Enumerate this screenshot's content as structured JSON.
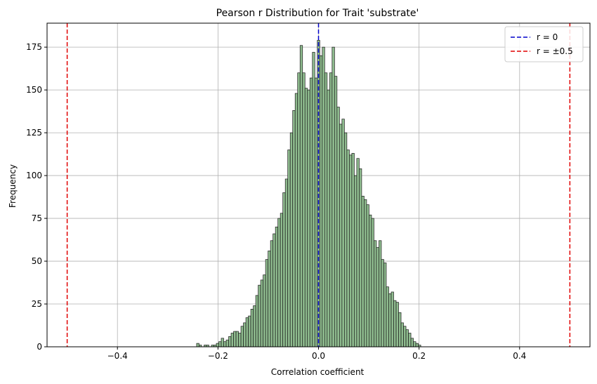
{
  "chart_data": {
    "type": "bar",
    "title": "Pearson r Distribution for Trait 'substrate'",
    "xlabel": "Correlation coefficient",
    "ylabel": "Frequency",
    "xlim": [
      -0.54,
      0.54
    ],
    "ylim": [
      0,
      189
    ],
    "xticks": [
      -0.4,
      -0.2,
      0.0,
      0.2,
      0.4
    ],
    "xtick_labels": [
      "−0.4",
      "−0.2",
      "0.0",
      "0.2",
      "0.4"
    ],
    "yticks": [
      0,
      25,
      50,
      75,
      100,
      125,
      150,
      175
    ],
    "ytick_labels": [
      "0",
      "25",
      "50",
      "75",
      "100",
      "125",
      "150",
      "175"
    ],
    "grid": true,
    "bar_color": "#8fbc8f",
    "bar_edge_color": "#1a1a1a",
    "bin_start": -0.2425,
    "bin_width": 0.0049,
    "values": [
      2,
      1,
      0,
      1,
      1,
      0,
      1,
      1,
      2,
      3,
      5,
      3,
      4,
      6,
      8,
      9,
      9,
      8,
      12,
      14,
      17,
      18,
      22,
      24,
      30,
      36,
      39,
      42,
      51,
      56,
      62,
      66,
      70,
      75,
      78,
      90,
      98,
      115,
      125,
      138,
      148,
      160,
      176,
      160,
      151,
      150,
      157,
      172,
      157,
      179,
      170,
      175,
      160,
      150,
      160,
      175,
      158,
      140,
      130,
      133,
      125,
      115,
      112,
      113,
      100,
      110,
      104,
      88,
      86,
      83,
      77,
      75,
      62,
      58,
      62,
      51,
      49,
      35,
      31,
      32,
      27,
      26,
      20,
      14,
      12,
      10,
      8,
      5,
      3,
      2,
      1
    ],
    "vlines": [
      {
        "x": 0,
        "color": "#0000cc",
        "style": "dashed"
      },
      {
        "x": -0.5,
        "color": "#e00000",
        "style": "dashed"
      },
      {
        "x": 0.5,
        "color": "#e00000",
        "style": "dashed"
      }
    ],
    "legend": {
      "placement": "top-right",
      "entries": [
        {
          "label": "r = 0",
          "color": "#0000cc"
        },
        {
          "label": "r = ±0.5",
          "color": "#e00000"
        }
      ]
    }
  }
}
